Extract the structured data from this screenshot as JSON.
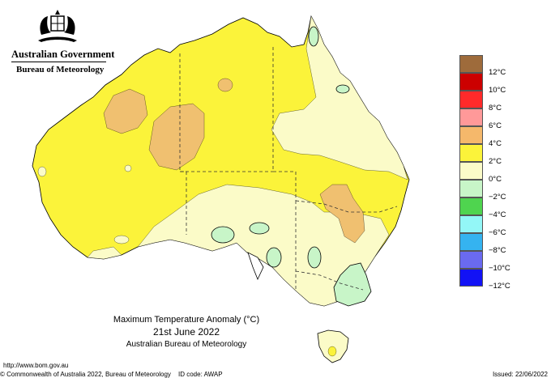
{
  "header": {
    "government": "Australian Government",
    "bureau": "Bureau of Meteorology"
  },
  "map_title": {
    "line1": "Maximum Temperature Anomaly (°C)",
    "line2": "21st June 2022",
    "line3": "Australian Bureau of Meteorology"
  },
  "footer": {
    "url": "http://www.bom.gov.au",
    "copyright": "© Commonwealth of Australia 2022, Bureau of Meteorology",
    "id_code": "ID code: AWAP",
    "issued": "Issued: 22/06/2022"
  },
  "legend": {
    "colors": [
      "#9e6b3b",
      "#cc0000",
      "#ff2a2a",
      "#ff9999",
      "#f5b86b",
      "#fbf33a",
      "#fbfbc8",
      "#c8f5c8",
      "#4fd44f",
      "#93f7f7",
      "#35b3f0",
      "#6a6af0",
      "#1212f5"
    ],
    "labels": [
      "12°C",
      "10°C",
      "8°C",
      "6°C",
      "4°C",
      "2°C",
      "0°C",
      "−2°C",
      "−4°C",
      "−6°C",
      "−8°C",
      "−10°C",
      "−12°C"
    ]
  },
  "palette": {
    "warm_2_4": "#fbf33a",
    "warm_4_6": "#f0c070",
    "neutral_0_2": "#fbfbc8",
    "cool_m2_0": "#c8f5c8"
  }
}
